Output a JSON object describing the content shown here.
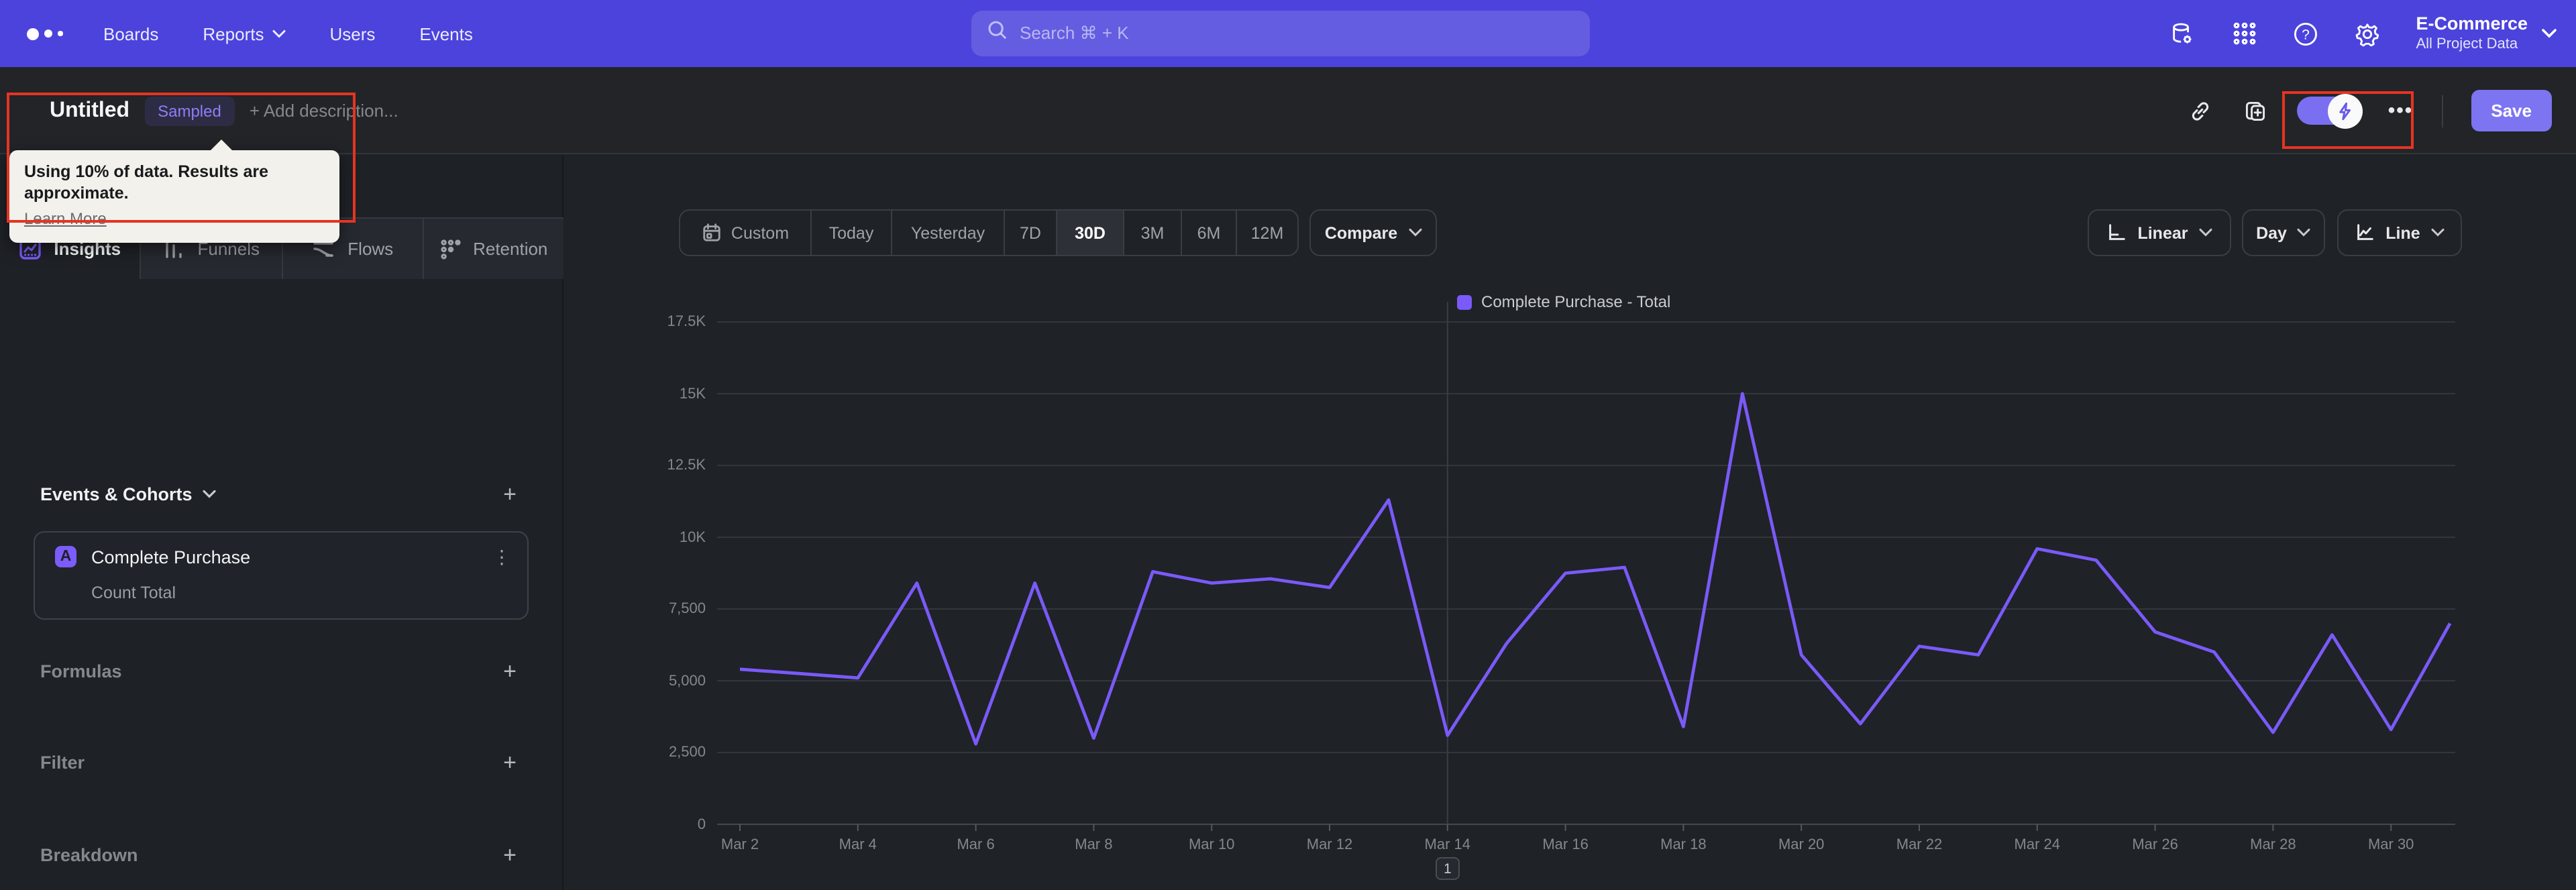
{
  "nav": {
    "items": [
      {
        "label": "Boards",
        "caret": false
      },
      {
        "label": "Reports",
        "caret": true
      },
      {
        "label": "Users",
        "caret": false
      },
      {
        "label": "Events",
        "caret": false
      }
    ],
    "search": {
      "placeholder": "Search  ⌘ + K"
    },
    "project": {
      "name": "E-Commerce",
      "scope": "All Project Data"
    }
  },
  "header": {
    "title": "Untitled",
    "badge": "Sampled",
    "add_description": "+ Add description...",
    "tooltip": {
      "message": "Using 10% of data. Results are approximate.",
      "link": "Learn More"
    },
    "more_label": "•••",
    "save_label": "Save"
  },
  "sidebar": {
    "tabs": [
      {
        "label": "Insights",
        "active": true
      },
      {
        "label": "Funnels",
        "active": false
      },
      {
        "label": "Flows",
        "active": false
      },
      {
        "label": "Retention",
        "active": false
      }
    ],
    "events_header": "Events & Cohorts",
    "event_card": {
      "badge": "A",
      "title": "Complete Purchase",
      "subtitle": "Count Total",
      "kebab": "⋮"
    },
    "sections": [
      "Formulas",
      "Filter",
      "Breakdown"
    ],
    "plus_label": "+"
  },
  "controls": {
    "time_ranges": [
      "Custom",
      "Today",
      "Yesterday",
      "7D",
      "30D",
      "3M",
      "6M",
      "12M"
    ],
    "active_range": "30D",
    "compare_label": "Compare",
    "scale_label": "Linear",
    "interval_label": "Day",
    "charttype_label": "Line"
  },
  "chart_data": {
    "type": "line",
    "title": "",
    "legend": [
      {
        "label": "Complete Purchase - Total",
        "color": "#7a5af8"
      }
    ],
    "x": [
      "Mar 2",
      "Mar 3",
      "Mar 4",
      "Mar 5",
      "Mar 6",
      "Mar 7",
      "Mar 8",
      "Mar 9",
      "Mar 10",
      "Mar 11",
      "Mar 12",
      "Mar 13",
      "Mar 14",
      "Mar 15",
      "Mar 16",
      "Mar 17",
      "Mar 18",
      "Mar 19",
      "Mar 20",
      "Mar 21",
      "Mar 22",
      "Mar 23",
      "Mar 24",
      "Mar 25",
      "Mar 26",
      "Mar 27",
      "Mar 28",
      "Mar 29",
      "Mar 30",
      "Mar 31"
    ],
    "series": [
      {
        "name": "Complete Purchase - Total",
        "values": [
          5400,
          5250,
          5100,
          8400,
          2800,
          8400,
          3000,
          8800,
          8400,
          8550,
          8250,
          11300,
          3100,
          6300,
          8750,
          8950,
          3400,
          15000,
          5900,
          3500,
          6200,
          5900,
          9600,
          9200,
          6700,
          6000,
          3200,
          6600,
          3300,
          7000
        ]
      }
    ],
    "ylim": [
      0,
      17500
    ],
    "ytick_labels": [
      "0",
      "2,500",
      "5,000",
      "7,500",
      "10K",
      "12.5K",
      "15K",
      "17.5K"
    ],
    "xtick_labels": [
      "Mar 2",
      "Mar 4",
      "Mar 6",
      "Mar 8",
      "Mar 10",
      "Mar 12",
      "Mar 14",
      "Mar 16",
      "Mar 18",
      "Mar 20",
      "Mar 22",
      "Mar 24",
      "Mar 26",
      "Mar 28",
      "Mar 30"
    ],
    "grid": true,
    "legend_position": "top",
    "annotation": {
      "label": "1",
      "x": "Mar 14"
    }
  },
  "colors": {
    "nav_bg": "#4b43dc",
    "accent": "#7a5af8",
    "toggle_on": "#7a6ff0",
    "save_bg": "#7d74f2",
    "sampled_text": "#8f7df7",
    "annotation_red": "#e63422",
    "tooltip_bg": "#f2f1ec",
    "panel_bg": "#1e2126",
    "gridline": "#33363c"
  }
}
